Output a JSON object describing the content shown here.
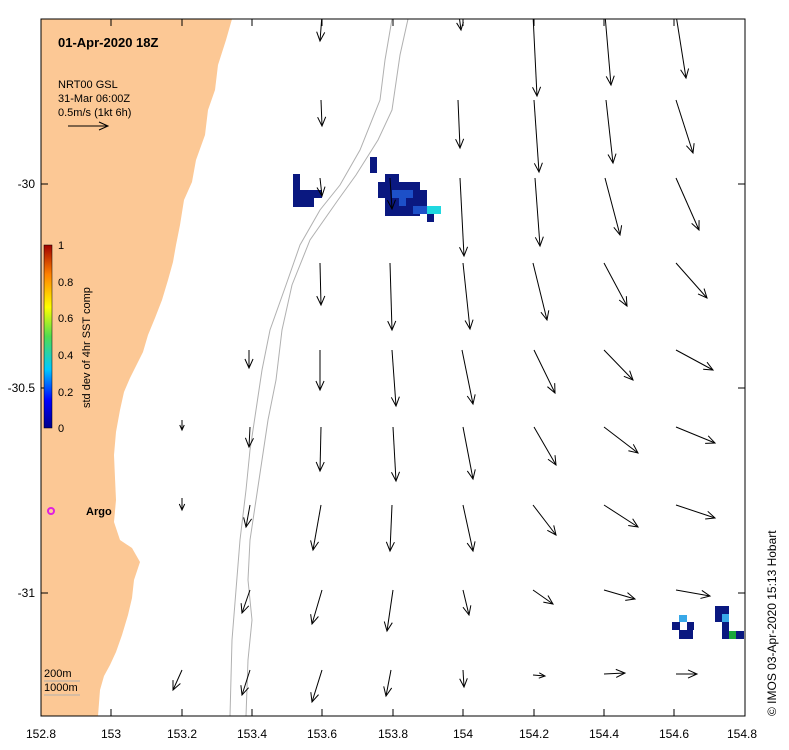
{
  "title": "01-Apr-2020 18Z",
  "legend": {
    "line1": "NRT00 GSL",
    "line2": "31-Mar 06:00Z",
    "line3": "0.5m/s (1kt 6h)"
  },
  "colorbar": {
    "label": "std dev of 4hr SST comp",
    "ticks": [
      "0",
      "0.2",
      "0.4",
      "0.6",
      "0.8",
      "1"
    ]
  },
  "x_axis": {
    "ticks": [
      "152.8",
      "153",
      "153.2",
      "153.4",
      "153.6",
      "153.8",
      "154",
      "154.2",
      "154.4",
      "154.6",
      "154.8"
    ]
  },
  "y_axis": {
    "ticks": [
      "-30",
      "-30.5",
      "-31"
    ]
  },
  "argo": {
    "label": "Argo"
  },
  "isobaths": {
    "shallow": "200m",
    "deep": "1000m"
  },
  "credit": "© IMOS 03-Apr-2020 15:13 Hobart",
  "colors": {
    "land": "#fcc895",
    "sst_dark": "#0a1880",
    "sst_mid": "#1d50c8",
    "sst_light": "#38a8e8",
    "sst_cyan": "#20d8e0",
    "sst_green": "#1aa83a",
    "argo": "#e020e0"
  }
}
